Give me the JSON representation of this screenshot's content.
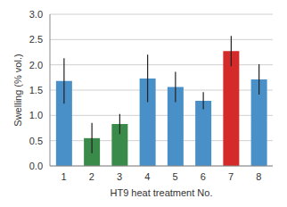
{
  "chart_data": {
    "type": "bar",
    "x_label": "HT9 heat treatment No.",
    "y_label": "Swelling (% vol.)",
    "categories": [
      "1",
      "2",
      "3",
      "4",
      "5",
      "6",
      "7",
      "8"
    ],
    "values": [
      1.68,
      0.55,
      0.83,
      1.73,
      1.56,
      1.29,
      2.27,
      1.71
    ],
    "errors": [
      0.45,
      0.3,
      0.2,
      0.47,
      0.3,
      0.17,
      0.3,
      0.3
    ],
    "colors": [
      "#4a90c8",
      "#3a8a4a",
      "#3a8a4a",
      "#4a90c8",
      "#4a90c8",
      "#4a90c8",
      "#d42a2a",
      "#4a90c8"
    ],
    "ylim": [
      0,
      3
    ],
    "yticks": [
      {
        "value": 0,
        "label": "0.0"
      },
      {
        "value": 0.5,
        "label": "0.5"
      },
      {
        "value": 1,
        "label": "1.0"
      },
      {
        "value": 1.5,
        "label": "1.5"
      },
      {
        "value": 2,
        "label": "2.0"
      },
      {
        "value": 2.5,
        "label": "2.5"
      },
      {
        "value": 3,
        "label": "3.0"
      }
    ],
    "grid": true
  }
}
